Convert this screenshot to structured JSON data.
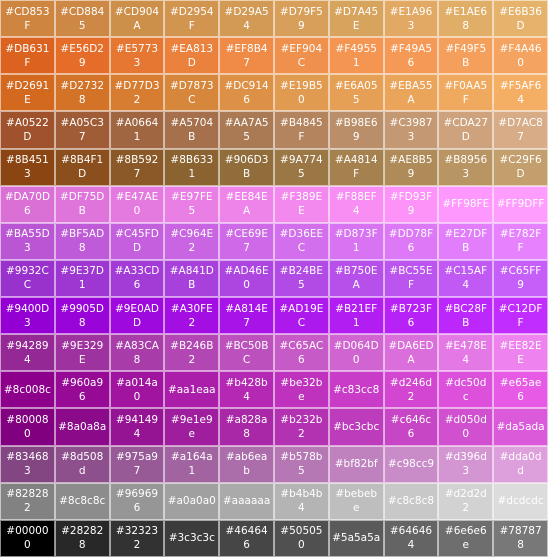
{
  "title": "",
  "rows": [
    [
      {
        "hex": "#CD853F",
        "l1": "#CD853",
        "l2": "F"
      },
      {
        "hex": "#CD8845",
        "l1": "#CD884",
        "l2": "5"
      },
      {
        "hex": "#CD904A",
        "l1": "#CD904",
        "l2": "A"
      },
      {
        "hex": "#D2954F",
        "l1": "#D2954",
        "l2": "F"
      },
      {
        "hex": "#D29A54",
        "l1": "#D29A5",
        "l2": "4"
      },
      {
        "hex": "#D79F59",
        "l1": "#D79F5",
        "l2": "9"
      },
      {
        "hex": "#D7A45E",
        "l1": "#D7A45",
        "l2": "E"
      },
      {
        "hex": "#E1A963",
        "l1": "#E1A96",
        "l2": "3"
      },
      {
        "hex": "#E1AE68",
        "l1": "#E1AE6",
        "l2": "8"
      },
      {
        "hex": "#E6B36D",
        "l1": "#E6B36",
        "l2": "D"
      }
    ],
    [
      {
        "hex": "#DB631F",
        "l1": "#DB631",
        "l2": "F"
      },
      {
        "hex": "#E56D29",
        "l1": "#E56D2",
        "l2": "9"
      },
      {
        "hex": "#E57733",
        "l1": "#E5773",
        "l2": "3"
      },
      {
        "hex": "#EA813D",
        "l1": "#EA813",
        "l2": "D"
      },
      {
        "hex": "#EF8B47",
        "l1": "#EF8B4",
        "l2": "7"
      },
      {
        "hex": "#EF904C",
        "l1": "#EF904",
        "l2": "C"
      },
      {
        "hex": "#F49551",
        "l1": "#F4955",
        "l2": "1"
      },
      {
        "hex": "#F49A56",
        "l1": "#F49A5",
        "l2": "6"
      },
      {
        "hex": "#F49F5B",
        "l1": "#F49F5",
        "l2": "B"
      },
      {
        "hex": "#F4A460",
        "l1": "#F4A46",
        "l2": "0"
      }
    ],
    [
      {
        "hex": "#D2691E",
        "l1": "#D2691",
        "l2": "E"
      },
      {
        "hex": "#D27328",
        "l1": "#D2732",
        "l2": "8"
      },
      {
        "hex": "#D77D32",
        "l1": "#D77D3",
        "l2": "2"
      },
      {
        "hex": "#D7873C",
        "l1": "#D7873",
        "l2": "C"
      },
      {
        "hex": "#DC9146",
        "l1": "#DC914",
        "l2": "6"
      },
      {
        "hex": "#E19B50",
        "l1": "#E19B5",
        "l2": "0"
      },
      {
        "hex": "#E6A055",
        "l1": "#E6A05",
        "l2": "5"
      },
      {
        "hex": "#EBA55A",
        "l1": "#EBA55",
        "l2": "A"
      },
      {
        "hex": "#F0AA5F",
        "l1": "#F0AA5",
        "l2": "F"
      },
      {
        "hex": "#F5AF64",
        "l1": "#F5AF6",
        "l2": "4"
      }
    ],
    [
      {
        "hex": "#A0522D",
        "l1": "#A0522",
        "l2": "D"
      },
      {
        "hex": "#A05C37",
        "l1": "#A05C3",
        "l2": "7"
      },
      {
        "hex": "#A06641",
        "l1": "#A0664",
        "l2": "1"
      },
      {
        "hex": "#A5704B",
        "l1": "#A5704",
        "l2": "B"
      },
      {
        "hex": "#AA7A55",
        "l1": "#AA7A5",
        "l2": "5"
      },
      {
        "hex": "#B4845F",
        "l1": "#B4845",
        "l2": "F"
      },
      {
        "hex": "#B98E69",
        "l1": "#B98E6",
        "l2": "9"
      },
      {
        "hex": "#C39873",
        "l1": "#C3987",
        "l2": "3"
      },
      {
        "hex": "#CDA27D",
        "l1": "#CDA27",
        "l2": "D"
      },
      {
        "hex": "#D7AC87",
        "l1": "#D7AC8",
        "l2": "7"
      }
    ],
    [
      {
        "hex": "#8B4513",
        "l1": "#8B451",
        "l2": "3"
      },
      {
        "hex": "#8B4F1D",
        "l1": "#8B4F1",
        "l2": "D"
      },
      {
        "hex": "#8B5927",
        "l1": "#8B592",
        "l2": "7"
      },
      {
        "hex": "#8B6331",
        "l1": "#8B633",
        "l2": "1"
      },
      {
        "hex": "#906D3B",
        "l1": "#906D3",
        "l2": "B"
      },
      {
        "hex": "#9A7745",
        "l1": "#9A774",
        "l2": "5"
      },
      {
        "hex": "#A4814F",
        "l1": "#A4814",
        "l2": "F"
      },
      {
        "hex": "#AE8B59",
        "l1": "#AE8B5",
        "l2": "9"
      },
      {
        "hex": "#B89563",
        "l1": "#B8956",
        "l2": "3"
      },
      {
        "hex": "#C29F6D",
        "l1": "#C29F6",
        "l2": "D"
      }
    ],
    [
      {
        "hex": "#DA70D6",
        "l1": "#DA70D",
        "l2": "6"
      },
      {
        "hex": "#DF75DB",
        "l1": "#DF75D",
        "l2": "B"
      },
      {
        "hex": "#E47AE0",
        "l1": "#E47AE",
        "l2": "0"
      },
      {
        "hex": "#E97FE5",
        "l1": "#E97FE",
        "l2": "5"
      },
      {
        "hex": "#EE84EA",
        "l1": "#EE84E",
        "l2": "A"
      },
      {
        "hex": "#F389EE",
        "l1": "#F389E",
        "l2": "E"
      },
      {
        "hex": "#F88EF4",
        "l1": "#F88EF",
        "l2": "4"
      },
      {
        "hex": "#FD93F9",
        "l1": "#FD93F",
        "l2": "9"
      },
      {
        "hex": "#FF98FE",
        "l1": "#FF98FE",
        "l2": ""
      },
      {
        "hex": "#FF9DFF",
        "l1": "#FF9DFF",
        "l2": ""
      }
    ],
    [
      {
        "hex": "#BA55D3",
        "l1": "#BA55D",
        "l2": "3"
      },
      {
        "hex": "#BF5AD8",
        "l1": "#BF5AD",
        "l2": "8"
      },
      {
        "hex": "#C45FDD",
        "l1": "#C45FD",
        "l2": "D"
      },
      {
        "hex": "#C964E2",
        "l1": "#C964E",
        "l2": "2"
      },
      {
        "hex": "#CE69E7",
        "l1": "#CE69E",
        "l2": "7"
      },
      {
        "hex": "#D36EEC",
        "l1": "#D36EE",
        "l2": "C"
      },
      {
        "hex": "#D873F1",
        "l1": "#D873F",
        "l2": "1"
      },
      {
        "hex": "#DD78F6",
        "l1": "#DD78F",
        "l2": "6"
      },
      {
        "hex": "#E27DFB",
        "l1": "#E27DF",
        "l2": "B"
      },
      {
        "hex": "#E782FF",
        "l1": "#E782F",
        "l2": "F"
      }
    ],
    [
      {
        "hex": "#9932CC",
        "l1": "#9932C",
        "l2": "C"
      },
      {
        "hex": "#9E37D1",
        "l1": "#9E37D",
        "l2": "1"
      },
      {
        "hex": "#A33CD6",
        "l1": "#A33CD",
        "l2": "6"
      },
      {
        "hex": "#A841DB",
        "l1": "#A841D",
        "l2": "B"
      },
      {
        "hex": "#AD46E0",
        "l1": "#AD46E",
        "l2": "0"
      },
      {
        "hex": "#B24BE5",
        "l1": "#B24BE",
        "l2": "5"
      },
      {
        "hex": "#B750EA",
        "l1": "#B750E",
        "l2": "A"
      },
      {
        "hex": "#BC55EF",
        "l1": "#BC55E",
        "l2": "F"
      },
      {
        "hex": "#C15AF4",
        "l1": "#C15AF",
        "l2": "4"
      },
      {
        "hex": "#C65FF9",
        "l1": "#C65FF",
        "l2": "9"
      }
    ],
    [
      {
        "hex": "#9400D3",
        "l1": "#9400D",
        "l2": "3"
      },
      {
        "hex": "#9905D8",
        "l1": "#9905D",
        "l2": "8"
      },
      {
        "hex": "#9E0ADD",
        "l1": "#9E0AD",
        "l2": "D"
      },
      {
        "hex": "#A30FE2",
        "l1": "#A30FE",
        "l2": "2"
      },
      {
        "hex": "#A814E7",
        "l1": "#A814E",
        "l2": "7"
      },
      {
        "hex": "#AD19EC",
        "l1": "#AD19E",
        "l2": "C"
      },
      {
        "hex": "#B21EF1",
        "l1": "#B21EF",
        "l2": "1"
      },
      {
        "hex": "#B723F6",
        "l1": "#B723F",
        "l2": "6"
      },
      {
        "hex": "#BC28FB",
        "l1": "#BC28F",
        "l2": "B"
      },
      {
        "hex": "#C12DFF",
        "l1": "#C12DF",
        "l2": "F"
      }
    ],
    [
      {
        "hex": "#942894",
        "l1": "#94289",
        "l2": "4"
      },
      {
        "hex": "#9E329E",
        "l1": "#9E329",
        "l2": "E"
      },
      {
        "hex": "#A83CA8",
        "l1": "#A83CA",
        "l2": "8"
      },
      {
        "hex": "#B246B2",
        "l1": "#B246B",
        "l2": "2"
      },
      {
        "hex": "#BC50BC",
        "l1": "#BC50B",
        "l2": "C"
      },
      {
        "hex": "#C65AC6",
        "l1": "#C65AC",
        "l2": "6"
      },
      {
        "hex": "#D064D0",
        "l1": "#D064D",
        "l2": "0"
      },
      {
        "hex": "#DA6EDA",
        "l1": "#DA6ED",
        "l2": "A"
      },
      {
        "hex": "#E478E4",
        "l1": "#E478E",
        "l2": "4"
      },
      {
        "hex": "#EE82EE",
        "l1": "#EE82E",
        "l2": "E"
      }
    ],
    [
      {
        "hex": "#8c008c",
        "l1": "#8c008c",
        "l2": ""
      },
      {
        "hex": "#960a96",
        "l1": "#960a9",
        "l2": "6"
      },
      {
        "hex": "#a014a0",
        "l1": "#a014a",
        "l2": "0"
      },
      {
        "hex": "#aa1eaa",
        "l1": "#aa1eaa",
        "l2": ""
      },
      {
        "hex": "#b428b4",
        "l1": "#b428b",
        "l2": "4"
      },
      {
        "hex": "#be32be",
        "l1": "#be32b",
        "l2": "e"
      },
      {
        "hex": "#c83cc8",
        "l1": "#c83cc8",
        "l2": ""
      },
      {
        "hex": "#d246d2",
        "l1": "#d246d",
        "l2": "2"
      },
      {
        "hex": "#dc50dc",
        "l1": "#dc50d",
        "l2": "c"
      },
      {
        "hex": "#e65ae6",
        "l1": "#e65ae",
        "l2": "6"
      }
    ],
    [
      {
        "hex": "#800080",
        "l1": "#80008",
        "l2": "0"
      },
      {
        "hex": "#8a0a8a",
        "l1": "#8a0a8a",
        "l2": ""
      },
      {
        "hex": "#941494",
        "l1": "#94149",
        "l2": "4"
      },
      {
        "hex": "#9e1e9e",
        "l1": "#9e1e9",
        "l2": "e"
      },
      {
        "hex": "#a828a8",
        "l1": "#a828a",
        "l2": "8"
      },
      {
        "hex": "#b232b2",
        "l1": "#b232b",
        "l2": "2"
      },
      {
        "hex": "#bc3cbc",
        "l1": "#bc3cbc",
        "l2": ""
      },
      {
        "hex": "#c646c6",
        "l1": "#c646c",
        "l2": "6"
      },
      {
        "hex": "#d050d0",
        "l1": "#d050d",
        "l2": "0"
      },
      {
        "hex": "#da5ada",
        "l1": "#da5ada",
        "l2": ""
      }
    ],
    [
      {
        "hex": "#834683",
        "l1": "#83468",
        "l2": "3"
      },
      {
        "hex": "#8d508d",
        "l1": "#8d508",
        "l2": "d"
      },
      {
        "hex": "#975a97",
        "l1": "#975a9",
        "l2": "7"
      },
      {
        "hex": "#a164a1",
        "l1": "#a164a",
        "l2": "1"
      },
      {
        "hex": "#ab6eab",
        "l1": "#ab6ea",
        "l2": "b"
      },
      {
        "hex": "#b578b5",
        "l1": "#b578b",
        "l2": "5"
      },
      {
        "hex": "#bf82bf",
        "l1": "#bf82bf",
        "l2": ""
      },
      {
        "hex": "#c98cc9",
        "l1": "#c98cc9",
        "l2": ""
      },
      {
        "hex": "#d396d3",
        "l1": "#d396d",
        "l2": "3"
      },
      {
        "hex": "#dda0dd",
        "l1": "#dda0d",
        "l2": "d"
      }
    ],
    [
      {
        "hex": "#828282",
        "l1": "#82828",
        "l2": "2"
      },
      {
        "hex": "#8c8c8c",
        "l1": "#8c8c8c",
        "l2": ""
      },
      {
        "hex": "#969696",
        "l1": "#96969",
        "l2": "6"
      },
      {
        "hex": "#a0a0a0",
        "l1": "#a0a0a0",
        "l2": ""
      },
      {
        "hex": "#aaaaaa",
        "l1": "#aaaaaa",
        "l2": ""
      },
      {
        "hex": "#b4b4b4",
        "l1": "#b4b4b",
        "l2": "4"
      },
      {
        "hex": "#bebebe",
        "l1": "#bebeb",
        "l2": "e"
      },
      {
        "hex": "#c8c8c8",
        "l1": "#c8c8c8",
        "l2": ""
      },
      {
        "hex": "#d2d2d2",
        "l1": "#d2d2d",
        "l2": "2"
      },
      {
        "hex": "#dcdcdc",
        "l1": "#dcdcdc",
        "l2": ""
      }
    ],
    [
      {
        "hex": "#000000",
        "l1": "#00000",
        "l2": "0"
      },
      {
        "hex": "#282828",
        "l1": "#28282",
        "l2": "8"
      },
      {
        "hex": "#323232",
        "l1": "#32323",
        "l2": "2"
      },
      {
        "hex": "#3c3c3c",
        "l1": "#3c3c3c",
        "l2": ""
      },
      {
        "hex": "#464646",
        "l1": "#46464",
        "l2": "6"
      },
      {
        "hex": "#505050",
        "l1": "#50505",
        "l2": "0"
      },
      {
        "hex": "#5a5a5a",
        "l1": "#5a5a5a",
        "l2": ""
      },
      {
        "hex": "#646464",
        "l1": "#64646",
        "l2": "4"
      },
      {
        "hex": "#6e6e6e",
        "l1": "#6e6e6",
        "l2": "e"
      },
      {
        "hex": "#787878",
        "l1": "#78787",
        "l2": "8"
      }
    ]
  ]
}
